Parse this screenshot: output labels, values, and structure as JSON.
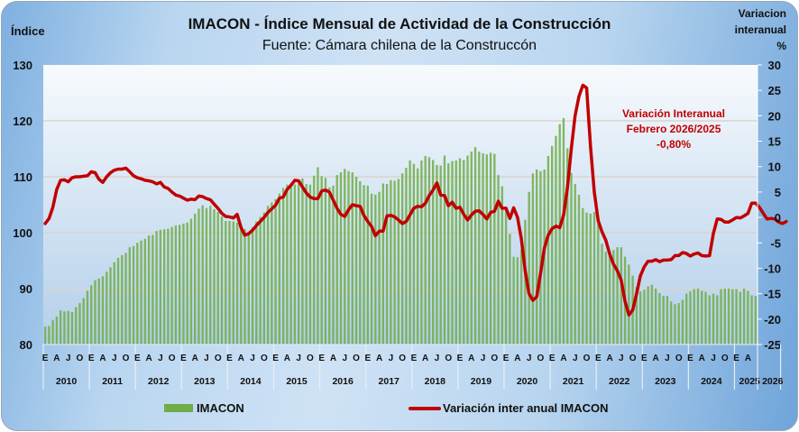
{
  "chart_data": {
    "type": "bar+line",
    "title": "IMACON - Índice Mensual de Actividad de la Construcción",
    "subtitle": "Fuente: Cámara chilena de la Construccón",
    "ylabel_left": "Índice",
    "ylabel_right": "Variacion\ninteranual\n%",
    "ylim_left": [
      80,
      130
    ],
    "yticks_left": [
      "130",
      "120",
      "110",
      "100",
      "90",
      "80"
    ],
    "ylim_right": [
      -25,
      30
    ],
    "yticks_right": [
      "30",
      "25",
      "20",
      "15",
      "10",
      "5",
      "0",
      "-5",
      "-10",
      "-15",
      "-20",
      "-25"
    ],
    "grid": true,
    "x_start": "2010-01",
    "month_labels": [
      "E",
      "A",
      "J",
      "O"
    ],
    "years": [
      "2010",
      "2011",
      "2012",
      "2013",
      "2014",
      "2015",
      "2016",
      "2017",
      "2018",
      "2019",
      "2020",
      "2021",
      "2022",
      "2023",
      "2024",
      "2025",
      "2026"
    ],
    "legend": {
      "position": "bottom",
      "bar_label": "IMACON",
      "line_label": "Variación inter anual IMACON"
    },
    "annotation": [
      "Variación Interanual",
      "Febrero 2026/2025",
      "-0,80%"
    ],
    "colors": {
      "bar": "#70ad47",
      "line": "#c00000"
    },
    "series": [
      {
        "name": "IMACON",
        "axis": "left",
        "values": [
          83.2,
          83.3,
          84.4,
          85.0,
          86.1,
          85.9,
          86.0,
          85.8,
          86.7,
          87.4,
          88.3,
          89.6,
          90.6,
          91.5,
          91.8,
          92.2,
          93.0,
          93.8,
          94.7,
          95.5,
          96.0,
          96.4,
          97.4,
          97.6,
          98.2,
          98.6,
          98.9,
          99.5,
          99.6,
          100.3,
          100.5,
          100.6,
          100.7,
          101.0,
          101.3,
          101.4,
          101.6,
          101.8,
          102.5,
          103.4,
          104.3,
          104.9,
          104.4,
          104.8,
          104.2,
          103.7,
          102.9,
          102.1,
          102.1,
          102.0,
          101.8,
          101.0,
          100.6,
          100.2,
          101.0,
          102.0,
          102.8,
          103.6,
          104.8,
          105.4,
          106.0,
          107.0,
          108.0,
          108.6,
          108.8,
          108.6,
          109.3,
          109.7,
          108.7,
          108.6,
          110.2,
          111.7,
          110.1,
          109.8,
          108.1,
          108.4,
          110.3,
          110.8,
          111.4,
          111.0,
          110.8,
          110.0,
          109.2,
          108.5,
          108.4,
          107.0,
          106.8,
          107.3,
          108.8,
          108.7,
          109.4,
          109.3,
          109.6,
          110.6,
          111.6,
          112.9,
          112.3,
          111.5,
          112.9,
          113.7,
          113.5,
          113.0,
          112.1,
          112.0,
          113.8,
          112.4,
          112.8,
          112.9,
          113.3,
          113.0,
          113.8,
          114.5,
          115.3,
          114.5,
          114.2,
          114.0,
          114.3,
          114.1,
          110.3,
          108.3,
          104.0,
          99.8,
          95.7,
          95.6,
          97.0,
          102.3,
          107.3,
          110.6,
          111.3,
          111.0,
          111.3,
          113.7,
          115.5,
          117.3,
          119.4,
          120.5,
          115.1,
          110.7,
          108.7,
          106.8,
          104.4,
          103.6,
          103.4,
          103.7,
          101.6,
          98.0,
          96.6,
          96.3,
          96.9,
          97.4,
          97.4,
          95.7,
          94.3,
          92.3,
          90.3,
          89.5,
          89.8,
          90.4,
          90.7,
          90.0,
          89.2,
          88.7,
          88.7,
          87.7,
          87.2,
          87.4,
          88.0,
          89.1,
          89.5,
          89.9,
          90.0,
          89.6,
          89.4,
          88.8,
          89.1,
          88.8,
          89.9,
          90.0,
          90.0,
          89.9,
          89.9,
          89.4,
          90.0,
          89.6,
          88.8,
          88.7
        ]
      },
      {
        "name": "Variación inter anual IMACON",
        "axis": "right",
        "values": [
          -1.2,
          -0.2,
          2.0,
          5.5,
          7.3,
          7.4,
          7.0,
          7.8,
          8.0,
          8.0,
          8.1,
          8.2,
          9.0,
          8.8,
          7.5,
          6.9,
          8.0,
          8.8,
          9.3,
          9.5,
          9.5,
          9.7,
          9.0,
          8.2,
          7.8,
          7.6,
          7.3,
          7.2,
          7.0,
          6.6,
          6.9,
          6.0,
          5.7,
          5.0,
          4.4,
          4.2,
          3.8,
          3.4,
          3.6,
          3.5,
          4.2,
          4.1,
          3.7,
          3.5,
          2.6,
          1.8,
          0.8,
          0.2,
          0.1,
          -0.1,
          0.6,
          -2.0,
          -3.5,
          -3.2,
          -2.5,
          -1.6,
          -0.8,
          0.0,
          1.0,
          1.7,
          2.4,
          3.8,
          4.0,
          5.5,
          6.3,
          7.3,
          7.2,
          6.0,
          4.8,
          4.0,
          3.7,
          3.7,
          5.2,
          5.4,
          5.0,
          3.4,
          1.8,
          0.6,
          0.2,
          1.5,
          2.5,
          2.3,
          2.2,
          0.4,
          -0.8,
          -1.8,
          -3.6,
          -2.7,
          -2.7,
          0.3,
          0.4,
          0.1,
          -0.5,
          -1.2,
          -0.8,
          0.5,
          1.8,
          2.2,
          2.1,
          2.8,
          4.3,
          5.4,
          6.8,
          4.4,
          4.3,
          2.3,
          3.0,
          1.8,
          2.0,
          0.6,
          -0.5,
          0.5,
          1.2,
          1.3,
          0.6,
          -0.3,
          1.0,
          1.2,
          3.2,
          1.8,
          1.8,
          -0.2,
          1.9,
          0.0,
          -4.2,
          -10.5,
          -15.0,
          -16.3,
          -15.6,
          -11.0,
          -6.0,
          -3.5,
          -2.2,
          -1.7,
          -2.0,
          0.5,
          5.8,
          13.5,
          20.0,
          23.8,
          26.0,
          25.5,
          14.0,
          5.0,
          -0.6,
          -2.8,
          -4.5,
          -7.2,
          -9.2,
          -10.5,
          -12.3,
          -16.5,
          -19.2,
          -18.2,
          -15.0,
          -11.5,
          -9.7,
          -8.6,
          -8.6,
          -8.3,
          -8.7,
          -8.4,
          -8.4,
          -8.3,
          -7.5,
          -7.5,
          -6.9,
          -7.1,
          -7.6,
          -7.2,
          -7.0,
          -7.5,
          -7.6,
          -7.5,
          -3.2,
          -0.3,
          -0.4,
          -0.9,
          -0.9,
          -0.5,
          0.0,
          -0.1,
          0.3,
          0.8,
          2.8,
          2.8,
          2.0,
          0.8,
          -0.3,
          -0.2,
          -0.3,
          -0.9,
          -1.2,
          -0.8
        ]
      }
    ]
  }
}
